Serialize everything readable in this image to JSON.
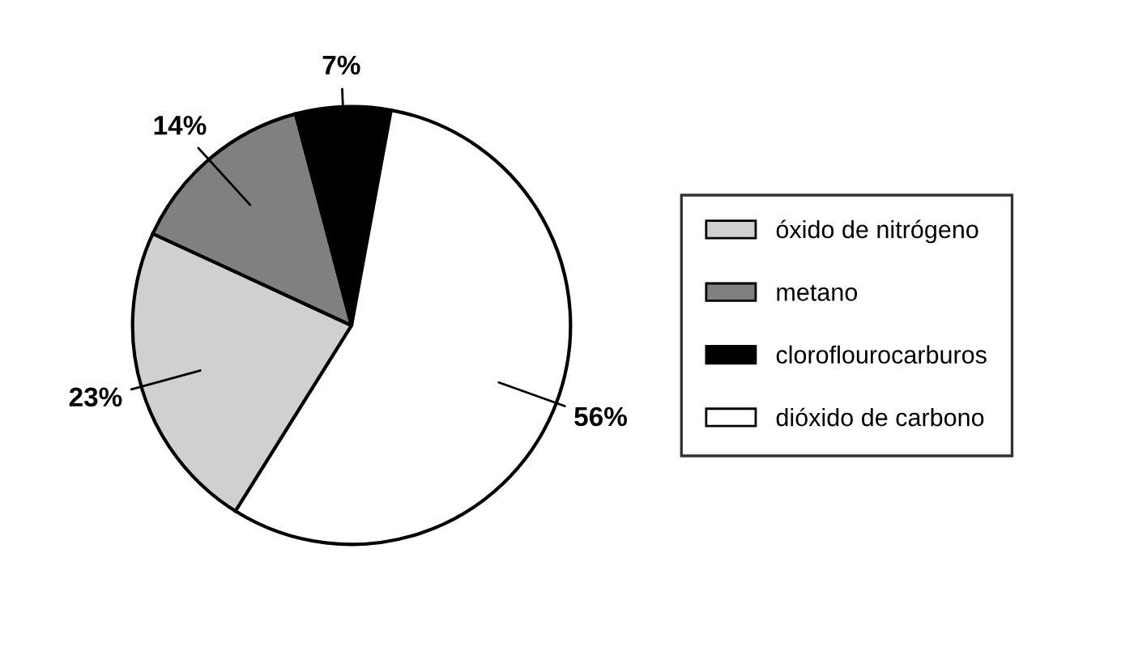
{
  "chart_data": {
    "type": "pie",
    "categories": [
      "óxido de nitrógeno",
      "metano",
      "cloroflourocarburos",
      "dióxido de carbono"
    ],
    "values": [
      23,
      14,
      7,
      56
    ],
    "colors": [
      "#d0d0d0",
      "#808080",
      "#000000",
      "#ffffff"
    ],
    "value_labels": [
      "23%",
      "14%",
      "7%",
      "56%"
    ],
    "legend": "right"
  }
}
